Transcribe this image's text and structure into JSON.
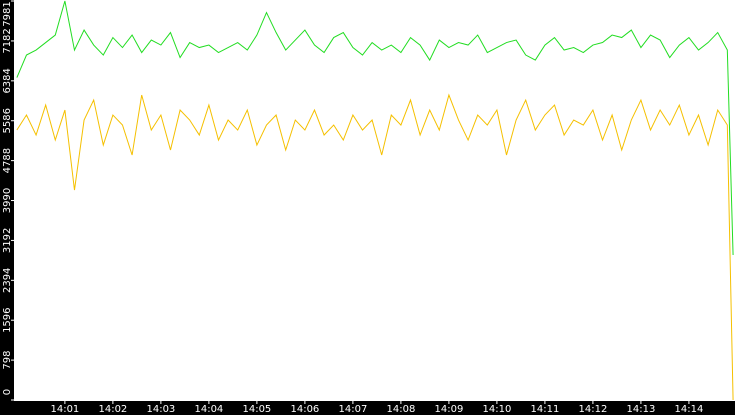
{
  "chart_data": {
    "type": "line",
    "x": [
      0,
      0.2,
      0.4,
      0.6,
      0.8,
      1,
      1.2,
      1.4,
      1.6,
      1.8,
      2,
      2.2,
      2.4,
      2.6,
      2.8,
      3,
      3.2,
      3.4,
      3.6,
      3.8,
      4,
      4.2,
      4.4,
      4.6,
      4.8,
      5,
      5.2,
      5.4,
      5.6,
      5.8,
      6,
      6.2,
      6.4,
      6.6,
      6.8,
      7,
      7.2,
      7.4,
      7.6,
      7.8,
      8,
      8.2,
      8.4,
      8.6,
      8.8,
      9,
      9.2,
      9.4,
      9.6,
      9.8,
      10,
      10.2,
      10.4,
      10.6,
      10.8,
      11,
      11.2,
      11.4,
      11.6,
      11.8,
      12,
      12.2,
      12.4,
      12.6,
      12.8,
      13,
      13.2,
      13.4,
      13.6,
      13.8,
      14,
      14.2,
      14.4,
      14.6,
      14.8,
      14.92
    ],
    "series": [
      {
        "color": "#22dd22",
        "values": [
          6450,
          6900,
          7000,
          7150,
          7300,
          7981,
          7000,
          7400,
          7100,
          6900,
          7250,
          7050,
          7300,
          6950,
          7200,
          7100,
          7350,
          6850,
          7150,
          7050,
          7100,
          6950,
          7050,
          7150,
          7000,
          7300,
          7750,
          7350,
          7000,
          7200,
          7400,
          7100,
          6950,
          7250,
          7350,
          7050,
          6900,
          7150,
          7000,
          7100,
          6950,
          7250,
          7100,
          6800,
          7200,
          7050,
          7150,
          7100,
          7300,
          6950,
          7050,
          7150,
          7200,
          6900,
          6800,
          7100,
          7250,
          7000,
          7050,
          6950,
          7100,
          7150,
          7300,
          7250,
          7400,
          7050,
          7300,
          7200,
          6850,
          7100,
          7250,
          7000,
          7150,
          7350,
          7000,
          2900
        ]
      },
      {
        "color": "#f5c000",
        "values": [
          5400,
          5700,
          5300,
          5900,
          5200,
          5800,
          4200,
          5600,
          6000,
          5100,
          5700,
          5500,
          4900,
          6100,
          5400,
          5700,
          5000,
          5800,
          5600,
          5300,
          5900,
          5200,
          5600,
          5400,
          5800,
          5100,
          5500,
          5700,
          5000,
          5600,
          5400,
          5800,
          5300,
          5500,
          5200,
          5700,
          5400,
          5600,
          4900,
          5700,
          5500,
          6000,
          5300,
          5800,
          5400,
          6100,
          5600,
          5200,
          5700,
          5500,
          5800,
          4900,
          5600,
          6000,
          5400,
          5700,
          5900,
          5300,
          5600,
          5500,
          5800,
          5200,
          5700,
          5000,
          5600,
          6000,
          5400,
          5800,
          5500,
          5900,
          5300,
          5700,
          5100,
          5800,
          5500,
          0
        ]
      }
    ],
    "xlim": [
      -0.06,
      14.96
    ],
    "xticks": [
      {
        "value": 1,
        "label": "14:01"
      },
      {
        "value": 2,
        "label": "14:02"
      },
      {
        "value": 3,
        "label": "14:03"
      },
      {
        "value": 4,
        "label": "14:04"
      },
      {
        "value": 5,
        "label": "14:05"
      },
      {
        "value": 6,
        "label": "14:06"
      },
      {
        "value": 7,
        "label": "14:07"
      },
      {
        "value": 8,
        "label": "14:08"
      },
      {
        "value": 9,
        "label": "14:09"
      },
      {
        "value": 10,
        "label": "14:10"
      },
      {
        "value": 11,
        "label": "14:11"
      },
      {
        "value": 12,
        "label": "14:12"
      },
      {
        "value": 13,
        "label": "14:13"
      },
      {
        "value": 14,
        "label": "14:14"
      }
    ],
    "ylim": [
      0,
      7981
    ],
    "yticks": [
      0,
      798,
      1596,
      2394,
      3192,
      3990,
      4788,
      5586,
      6384,
      7182,
      7981
    ]
  }
}
